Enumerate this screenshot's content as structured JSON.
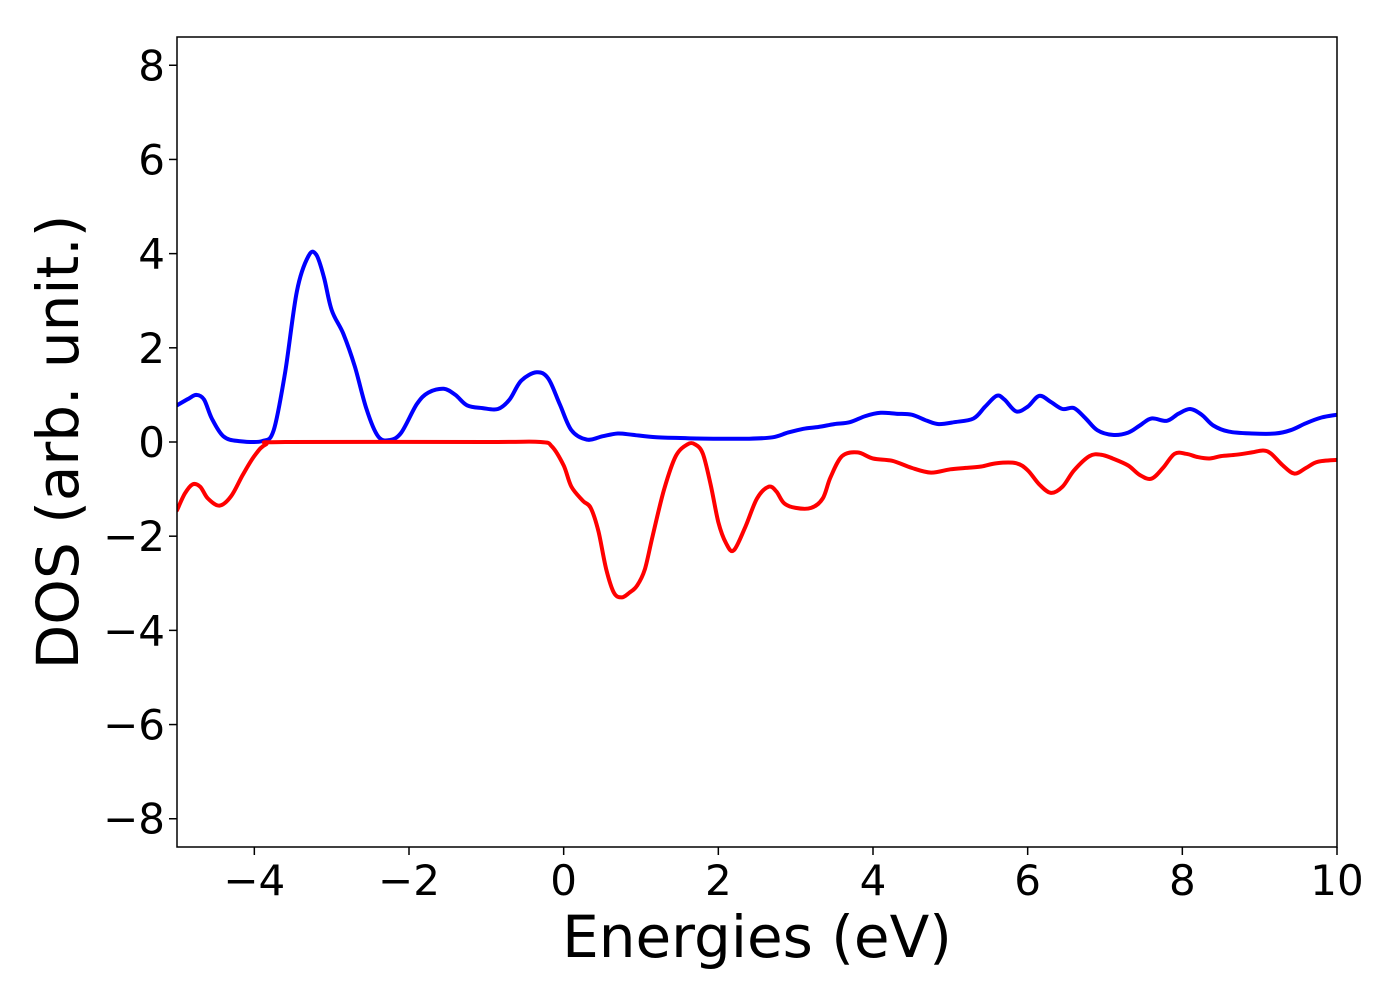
{
  "chart_data": {
    "type": "line",
    "title": "",
    "xlabel": "Energies (eV)",
    "ylabel": "DOS (arb. unit.)",
    "xlim": [
      -5,
      10
    ],
    "ylim": [
      -8.6,
      8.6
    ],
    "grid": false,
    "legend": "none",
    "xticks": [
      -4,
      -2,
      0,
      2,
      4,
      6,
      8,
      10
    ],
    "yticks": [
      -8,
      -6,
      -4,
      -2,
      0,
      2,
      4,
      6,
      8
    ],
    "series": [
      {
        "color": "#0000ff",
        "points": [
          [
            -5.0,
            0.78
          ],
          [
            -4.85,
            0.92
          ],
          [
            -4.75,
            1.0
          ],
          [
            -4.65,
            0.9
          ],
          [
            -4.55,
            0.5
          ],
          [
            -4.4,
            0.12
          ],
          [
            -4.2,
            0.02
          ],
          [
            -3.9,
            0.02
          ],
          [
            -3.75,
            0.25
          ],
          [
            -3.6,
            1.5
          ],
          [
            -3.45,
            3.2
          ],
          [
            -3.3,
            3.95
          ],
          [
            -3.2,
            3.98
          ],
          [
            -3.1,
            3.5
          ],
          [
            -3.0,
            2.8
          ],
          [
            -2.85,
            2.3
          ],
          [
            -2.7,
            1.6
          ],
          [
            -2.55,
            0.7
          ],
          [
            -2.4,
            0.12
          ],
          [
            -2.25,
            0.04
          ],
          [
            -2.1,
            0.2
          ],
          [
            -1.9,
            0.8
          ],
          [
            -1.75,
            1.05
          ],
          [
            -1.55,
            1.13
          ],
          [
            -1.4,
            1.0
          ],
          [
            -1.25,
            0.78
          ],
          [
            -1.05,
            0.72
          ],
          [
            -0.85,
            0.7
          ],
          [
            -0.7,
            0.9
          ],
          [
            -0.55,
            1.3
          ],
          [
            -0.35,
            1.48
          ],
          [
            -0.2,
            1.35
          ],
          [
            -0.05,
            0.8
          ],
          [
            0.1,
            0.25
          ],
          [
            0.3,
            0.05
          ],
          [
            0.5,
            0.12
          ],
          [
            0.7,
            0.18
          ],
          [
            0.9,
            0.15
          ],
          [
            1.2,
            0.1
          ],
          [
            1.6,
            0.08
          ],
          [
            2.0,
            0.07
          ],
          [
            2.4,
            0.07
          ],
          [
            2.7,
            0.1
          ],
          [
            2.9,
            0.2
          ],
          [
            3.1,
            0.28
          ],
          [
            3.3,
            0.32
          ],
          [
            3.5,
            0.38
          ],
          [
            3.7,
            0.42
          ],
          [
            3.9,
            0.55
          ],
          [
            4.1,
            0.62
          ],
          [
            4.3,
            0.6
          ],
          [
            4.5,
            0.58
          ],
          [
            4.7,
            0.45
          ],
          [
            4.85,
            0.38
          ],
          [
            5.05,
            0.42
          ],
          [
            5.3,
            0.5
          ],
          [
            5.45,
            0.75
          ],
          [
            5.6,
            0.98
          ],
          [
            5.7,
            0.9
          ],
          [
            5.85,
            0.65
          ],
          [
            6.0,
            0.75
          ],
          [
            6.15,
            0.98
          ],
          [
            6.3,
            0.85
          ],
          [
            6.45,
            0.7
          ],
          [
            6.6,
            0.72
          ],
          [
            6.75,
            0.5
          ],
          [
            6.9,
            0.25
          ],
          [
            7.1,
            0.15
          ],
          [
            7.3,
            0.2
          ],
          [
            7.45,
            0.35
          ],
          [
            7.6,
            0.5
          ],
          [
            7.8,
            0.45
          ],
          [
            7.95,
            0.6
          ],
          [
            8.1,
            0.7
          ],
          [
            8.25,
            0.58
          ],
          [
            8.4,
            0.35
          ],
          [
            8.6,
            0.22
          ],
          [
            8.9,
            0.18
          ],
          [
            9.2,
            0.18
          ],
          [
            9.4,
            0.25
          ],
          [
            9.6,
            0.4
          ],
          [
            9.8,
            0.52
          ],
          [
            10.0,
            0.58
          ]
        ]
      },
      {
        "color": "#ff0000",
        "points": [
          [
            -5.0,
            -1.45
          ],
          [
            -4.9,
            -1.1
          ],
          [
            -4.8,
            -0.9
          ],
          [
            -4.7,
            -0.95
          ],
          [
            -4.6,
            -1.2
          ],
          [
            -4.45,
            -1.35
          ],
          [
            -4.3,
            -1.15
          ],
          [
            -4.15,
            -0.7
          ],
          [
            -4.0,
            -0.3
          ],
          [
            -3.85,
            -0.05
          ],
          [
            -3.6,
            0.0
          ],
          [
            -1.0,
            0.0
          ],
          [
            -0.3,
            0.0
          ],
          [
            -0.15,
            -0.1
          ],
          [
            0.0,
            -0.5
          ],
          [
            0.1,
            -0.95
          ],
          [
            0.25,
            -1.25
          ],
          [
            0.35,
            -1.4
          ],
          [
            0.45,
            -1.9
          ],
          [
            0.55,
            -2.7
          ],
          [
            0.65,
            -3.2
          ],
          [
            0.75,
            -3.3
          ],
          [
            0.85,
            -3.2
          ],
          [
            0.95,
            -3.05
          ],
          [
            1.05,
            -2.7
          ],
          [
            1.15,
            -2.0
          ],
          [
            1.3,
            -1.0
          ],
          [
            1.45,
            -0.3
          ],
          [
            1.6,
            -0.05
          ],
          [
            1.7,
            -0.05
          ],
          [
            1.8,
            -0.25
          ],
          [
            1.9,
            -0.9
          ],
          [
            2.0,
            -1.7
          ],
          [
            2.1,
            -2.15
          ],
          [
            2.2,
            -2.3
          ],
          [
            2.35,
            -1.8
          ],
          [
            2.5,
            -1.2
          ],
          [
            2.65,
            -0.95
          ],
          [
            2.75,
            -1.05
          ],
          [
            2.85,
            -1.3
          ],
          [
            3.0,
            -1.4
          ],
          [
            3.2,
            -1.4
          ],
          [
            3.35,
            -1.2
          ],
          [
            3.45,
            -0.75
          ],
          [
            3.6,
            -0.3
          ],
          [
            3.8,
            -0.22
          ],
          [
            4.0,
            -0.35
          ],
          [
            4.25,
            -0.4
          ],
          [
            4.5,
            -0.55
          ],
          [
            4.75,
            -0.65
          ],
          [
            5.0,
            -0.58
          ],
          [
            5.2,
            -0.55
          ],
          [
            5.4,
            -0.52
          ],
          [
            5.6,
            -0.45
          ],
          [
            5.85,
            -0.45
          ],
          [
            6.0,
            -0.6
          ],
          [
            6.15,
            -0.9
          ],
          [
            6.3,
            -1.08
          ],
          [
            6.45,
            -0.95
          ],
          [
            6.6,
            -0.6
          ],
          [
            6.8,
            -0.3
          ],
          [
            6.95,
            -0.27
          ],
          [
            7.1,
            -0.35
          ],
          [
            7.3,
            -0.5
          ],
          [
            7.45,
            -0.7
          ],
          [
            7.6,
            -0.78
          ],
          [
            7.75,
            -0.55
          ],
          [
            7.9,
            -0.25
          ],
          [
            8.05,
            -0.25
          ],
          [
            8.2,
            -0.32
          ],
          [
            8.35,
            -0.35
          ],
          [
            8.5,
            -0.3
          ],
          [
            8.7,
            -0.27
          ],
          [
            8.9,
            -0.22
          ],
          [
            9.05,
            -0.18
          ],
          [
            9.15,
            -0.25
          ],
          [
            9.3,
            -0.5
          ],
          [
            9.45,
            -0.67
          ],
          [
            9.6,
            -0.55
          ],
          [
            9.75,
            -0.42
          ],
          [
            10.0,
            -0.38
          ]
        ]
      }
    ]
  }
}
